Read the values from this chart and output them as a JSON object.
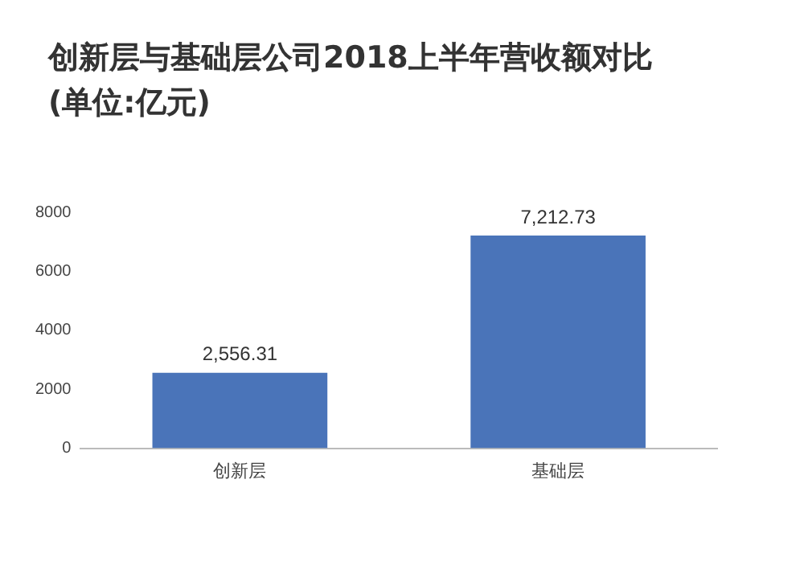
{
  "chart_data": {
    "type": "bar",
    "title": "创新层与基础层公司2018上半年营收额对比",
    "subtitle": "(单位:亿元)",
    "categories": [
      "创新层",
      "基础层"
    ],
    "values": [
      2556.31,
      7212.73
    ],
    "value_labels": [
      "2,556.31",
      "7,212.73"
    ],
    "color": "#4a74b9",
    "ylim": [
      0,
      8000
    ],
    "yticks": [
      0,
      2000,
      4000,
      6000,
      8000
    ],
    "grid": false,
    "legend": false
  }
}
